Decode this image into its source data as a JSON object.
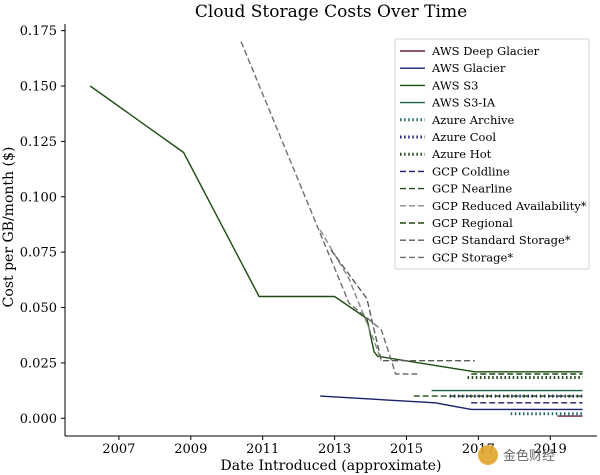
{
  "chart_data": {
    "type": "line",
    "title": "Cloud Storage Costs Over Time",
    "xlabel": "Date Introduced (approximate)",
    "ylabel": "Cost per GB/month ($)",
    "xlim": [
      2005.5,
      2020.3
    ],
    "ylim": [
      -0.008,
      0.178
    ],
    "x_ticks": [
      2007,
      2009,
      2011,
      2013,
      2015,
      2017,
      2019
    ],
    "x_tick_labels": [
      "2007",
      "2009",
      "2011",
      "2013",
      "2015",
      "2017",
      "2019"
    ],
    "y_ticks": [
      0.0,
      0.025,
      0.05,
      0.075,
      0.1,
      0.125,
      0.15,
      0.175
    ],
    "y_tick_labels": [
      "0.000",
      "0.025",
      "0.050",
      "0.075",
      "0.100",
      "0.125",
      "0.150",
      "0.175"
    ],
    "grid": false,
    "legend_position": "top-right",
    "series": [
      {
        "name": "AWS Deep Glacier",
        "color": "#6b1d3a",
        "dash": "solid",
        "points": [
          [
            2019.2,
            0.00099
          ],
          [
            2019.9,
            0.00099
          ]
        ]
      },
      {
        "name": "AWS Glacier",
        "color": "#1b1f6b",
        "dash": "solid",
        "points": [
          [
            2012.6,
            0.01
          ],
          [
            2015.8,
            0.007
          ],
          [
            2016.8,
            0.004
          ],
          [
            2019.9,
            0.004
          ]
        ]
      },
      {
        "name": "AWS S3",
        "color": "#1d4d12",
        "dash": "solid",
        "points": [
          [
            2006.2,
            0.15
          ],
          [
            2008.8,
            0.12
          ],
          [
            2010.9,
            0.055
          ],
          [
            2013.0,
            0.055
          ],
          [
            2013.9,
            0.045
          ],
          [
            2014.1,
            0.03
          ],
          [
            2014.2,
            0.028
          ],
          [
            2016.9,
            0.021
          ],
          [
            2019.9,
            0.021
          ]
        ]
      },
      {
        "name": "AWS S3-IA",
        "color": "#17604a",
        "dash": "solid",
        "points": [
          [
            2015.7,
            0.0125
          ],
          [
            2019.9,
            0.0125
          ]
        ]
      },
      {
        "name": "Azure Archive",
        "color": "#1d6b6b",
        "dash": "dotted",
        "points": [
          [
            2017.9,
            0.002
          ],
          [
            2019.9,
            0.002
          ]
        ]
      },
      {
        "name": "Azure Cool",
        "color": "#1b1f6b",
        "dash": "dotted",
        "points": [
          [
            2016.2,
            0.01
          ],
          [
            2019.9,
            0.01
          ]
        ]
      },
      {
        "name": "Azure Hot",
        "color": "#1d4d12",
        "dash": "dotted",
        "points": [
          [
            2016.7,
            0.0184
          ],
          [
            2019.9,
            0.0184
          ]
        ]
      },
      {
        "name": "GCP Coldline",
        "color": "#1b1f6b",
        "dash": "dashed",
        "points": [
          [
            2016.8,
            0.007
          ],
          [
            2019.9,
            0.007
          ]
        ]
      },
      {
        "name": "GCP Nearline",
        "color": "#1d4d12",
        "dash": "dashed",
        "points": [
          [
            2015.2,
            0.01
          ],
          [
            2019.9,
            0.01
          ]
        ]
      },
      {
        "name": "GCP Reduced Availability*",
        "color": "#8a8a8a",
        "dash": "dashed",
        "points": [
          [
            2012.6,
            0.085
          ],
          [
            2013.4,
            0.063
          ],
          [
            2014.1,
            0.035
          ],
          [
            2014.3,
            0.026
          ]
        ]
      },
      {
        "name": "GCP Regional",
        "color": "#1d4d12",
        "dash": "dashed",
        "points": [
          [
            2016.8,
            0.02
          ],
          [
            2019.9,
            0.02
          ]
        ]
      },
      {
        "name": "GCP Standard Storage*",
        "color": "#5a5a5a",
        "dash": "dashed",
        "points": [
          [
            2012.9,
            0.076
          ],
          [
            2013.9,
            0.054
          ],
          [
            2014.3,
            0.026
          ],
          [
            2016.9,
            0.026
          ]
        ]
      },
      {
        "name": "GCP Storage*",
        "color": "#6e6e6e",
        "dash": "dashed",
        "points": [
          [
            2010.4,
            0.17
          ],
          [
            2013.4,
            0.052
          ],
          [
            2014.3,
            0.04
          ],
          [
            2014.7,
            0.02
          ],
          [
            2015.3,
            0.02
          ]
        ]
      }
    ]
  },
  "watermark": {
    "text": "金色财经"
  }
}
